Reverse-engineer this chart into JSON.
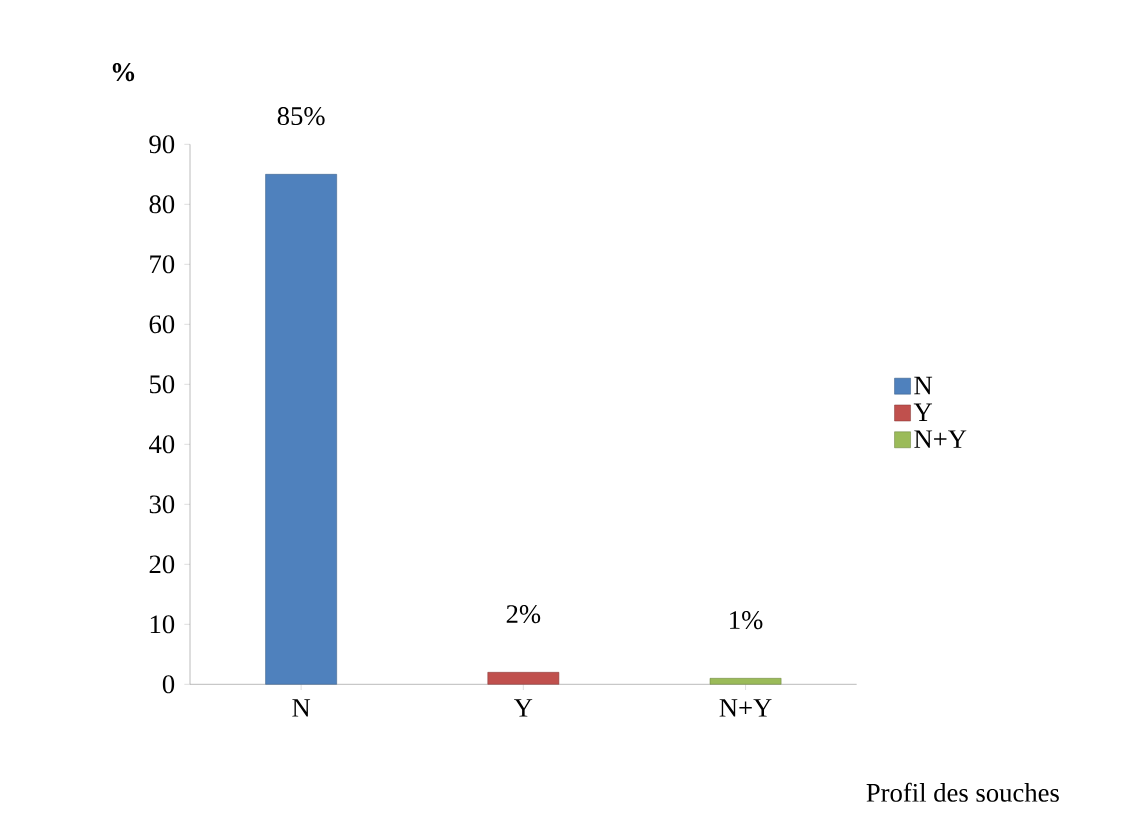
{
  "chart_data": {
    "type": "bar",
    "xlabel": "Profil des souches",
    "ylabel": "%",
    "categories": [
      "N",
      "Y",
      "N+Y"
    ],
    "series": [
      {
        "name": "N",
        "color": "#4f81bd",
        "values": [
          85,
          null,
          null
        ],
        "value_labels": [
          "85%",
          null,
          null
        ]
      },
      {
        "name": "Y",
        "color": "#c0504d",
        "values": [
          null,
          2,
          null
        ],
        "value_labels": [
          null,
          "2%",
          null
        ]
      },
      {
        "name": "N+Y",
        "color": "#9bbb59",
        "values": [
          null,
          null,
          1
        ],
        "value_labels": [
          null,
          null,
          "1%"
        ]
      }
    ],
    "ylim": [
      0,
      90
    ],
    "yticks": [
      0,
      10,
      20,
      30,
      40,
      50,
      60,
      70,
      80,
      90
    ],
    "legend": "right"
  }
}
